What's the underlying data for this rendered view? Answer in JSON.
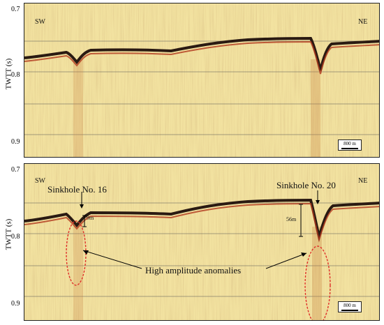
{
  "top_panel": {
    "left_label": "SW",
    "right_label": "NE",
    "y_axis_label": "TWTT (s)",
    "y_ticks": [
      "0.7",
      "0.8",
      "0.9"
    ],
    "scale_bar": "800 m"
  },
  "bottom_panel": {
    "left_label": "SW",
    "right_label": "NE",
    "y_axis_label": "TWTT (s)",
    "y_ticks": [
      "0.7",
      "0.8",
      "0.9"
    ],
    "scale_bar": "800 m",
    "annotations": {
      "sinkhole_16": "Sinkhole No. 16",
      "sinkhole_20": "Sinkhole No. 20",
      "depth_16": "9m",
      "depth_20": "56m",
      "anomalies": "High amplitude anomalies"
    }
  },
  "colors": {
    "background": "#f2e2a0",
    "reflector": "#2a1a12",
    "anomaly_ellipse": "#e0302a"
  }
}
